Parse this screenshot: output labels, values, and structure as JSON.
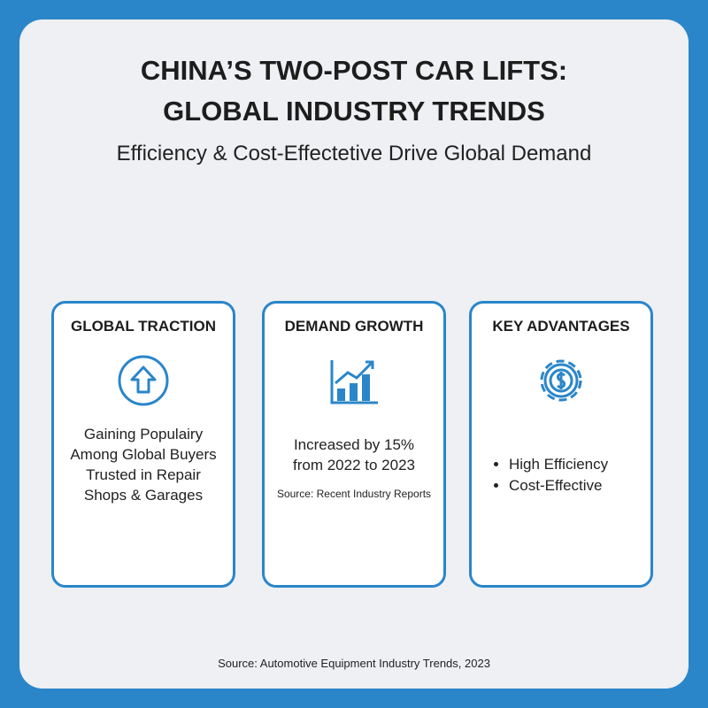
{
  "header": {
    "title_lines": [
      "CHINA’S TWO-POST CAR LIFTS:",
      "GLOBAL INDUSTRY TRENDS"
    ],
    "subtitle": "Efficiency & Cost-Effectetive Drive Global Demand"
  },
  "cards": [
    {
      "title": "GLOBAL TRACTION",
      "lines": [
        "Gaining Populairy",
        "Among Global Buyers",
        "Trusted in Repair",
        "Shops & Garages"
      ]
    },
    {
      "title": "DEMAND GROWTH",
      "lines": [
        "Increased by 15%",
        "from 2022 to 2023"
      ],
      "note": "Source: Recent Industry Reports"
    },
    {
      "title": "KEY ADVANTAGES",
      "bullets": [
        "High Efficiency",
        "Cost-Effective"
      ]
    }
  ],
  "footer": {
    "source": "Source: Automotive Equipment Industry Trends, 2023"
  }
}
